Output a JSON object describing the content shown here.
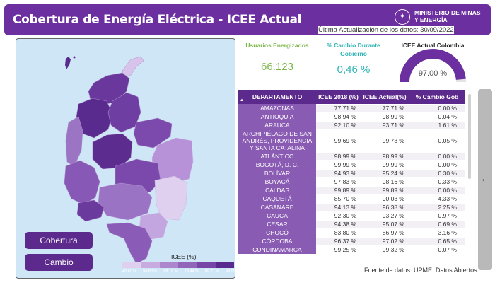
{
  "header": {
    "title": "Cobertura de Energía Eléctrica - ICEE Actual",
    "ministry_line1": "MINISTERIO DE MINAS",
    "ministry_line2": "Y ENERGÍA",
    "updated": "Última Actualización de los datos: 30/09/2022"
  },
  "buttons": {
    "cobertura": "Cobertura",
    "cambio": "Cambio"
  },
  "legend": {
    "title": "ICEE (%)",
    "labels": [
      "48.60 %",
      "50.68 %",
      "68.16 %",
      "79.44 %",
      "89.71 %",
      "99.99"
    ],
    "colors": [
      "#e0d0ef",
      "#c9acdf",
      "#ad87cc",
      "#9165ba",
      "#7645a6",
      "#5a2b8e"
    ]
  },
  "kpis": {
    "users_label": "Usuarios Energizados",
    "users_value": "66.123",
    "users_color": "#7ab648",
    "change_label_1": "% Cambio Durante",
    "change_label_2": "Gobierno",
    "change_value": "0,46 %",
    "change_color": "#2bb3b5",
    "icee_label": "ICEE Actual Colombia",
    "icee_value": "97.00 %",
    "icee_fraction": 0.97
  },
  "table": {
    "headers": [
      "DEPARTAMENTO",
      "ICEE 2018 (%)",
      "ICEE Actual(%)",
      "% Cambio Gob"
    ],
    "rows": [
      [
        "AMAZONAS",
        "77.71 %",
        "77.71 %",
        "0.00 %"
      ],
      [
        "ANTIOQUIA",
        "98.94 %",
        "98.99 %",
        "0.04 %"
      ],
      [
        "ARAUCA",
        "92.10 %",
        "93.71 %",
        "1.61 %"
      ],
      [
        "ARCHIPIÉLAGO DE SAN ANDRÉS, PROVIDENCIA Y SANTA CATALINA",
        "99.69 %",
        "99.73 %",
        "0.05 %"
      ],
      [
        "ATLÁNTICO",
        "98.99 %",
        "98.99 %",
        "0.00 %"
      ],
      [
        "BOGOTÁ, D. C.",
        "99.99 %",
        "99.99 %",
        "0.00 %"
      ],
      [
        "BOLÍVAR",
        "94.93 %",
        "95.24 %",
        "0.30 %"
      ],
      [
        "BOYACÁ",
        "97.83 %",
        "98.16 %",
        "0.33 %"
      ],
      [
        "CALDAS",
        "99.89 %",
        "99.89 %",
        "0.00 %"
      ],
      [
        "CAQUETÁ",
        "85.70 %",
        "90.03 %",
        "4.33 %"
      ],
      [
        "CASANARE",
        "94.13 %",
        "96.38 %",
        "2.25 %"
      ],
      [
        "CAUCA",
        "92.30 %",
        "93.27 %",
        "0.97 %"
      ],
      [
        "CESAR",
        "94.38 %",
        "95.07 %",
        "0.69 %"
      ],
      [
        "CHOCÓ",
        "83.80 %",
        "86.97 %",
        "3.16 %"
      ],
      [
        "CÓRDOBA",
        "96.37 %",
        "97.02 %",
        "0.65 %"
      ],
      [
        "CUNDINAMARCA",
        "99.25 %",
        "99.32 %",
        "0.07 %"
      ]
    ]
  },
  "source": "Fuente de datos: UPME. Datos Abiertos",
  "colors": {
    "header": "#6b2fa0",
    "button": "#5c2a8c",
    "table_header": "#5c2a8c",
    "dept_cell": "#8a5bb3"
  }
}
